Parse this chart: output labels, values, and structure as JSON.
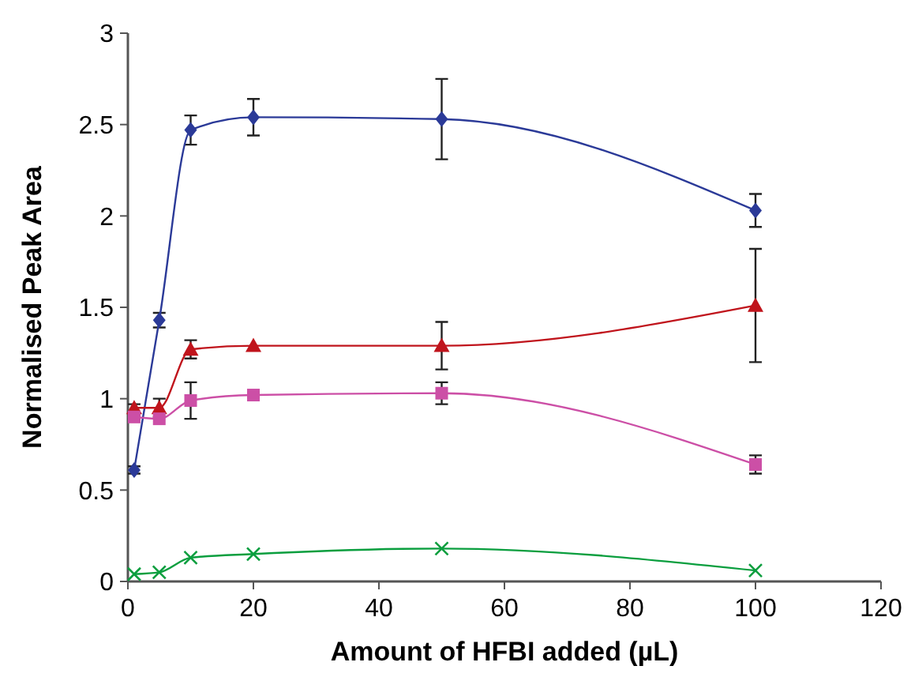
{
  "chart_data": {
    "type": "line",
    "xlabel": "Amount of HFBI added (µL)",
    "ylabel": "Normalised Peak Area",
    "x": [
      1,
      5,
      10,
      20,
      50,
      100
    ],
    "xlim": [
      0,
      120
    ],
    "xticks": [
      0,
      20,
      40,
      60,
      80,
      100,
      120
    ],
    "ylim": [
      0,
      3
    ],
    "yticks": [
      0,
      0.5,
      1,
      1.5,
      2,
      2.5,
      3
    ],
    "grid": false,
    "series": [
      {
        "color": "#2b3a98",
        "marker": "diamond",
        "values": [
          0.61,
          1.43,
          2.47,
          2.54,
          2.53,
          2.03
        ],
        "errors": [
          0.02,
          0.04,
          0.08,
          0.1,
          0.22,
          0.09
        ]
      },
      {
        "color": "#c0141c",
        "marker": "triangle",
        "values": [
          0.95,
          0.95,
          1.27,
          1.29,
          1.29,
          1.51
        ],
        "errors": [
          0.02,
          0.05,
          0.05,
          null,
          0.13,
          0.31
        ]
      },
      {
        "color": "#cc4fa6",
        "marker": "square",
        "values": [
          0.9,
          0.89,
          0.99,
          1.02,
          1.03,
          0.64
        ],
        "errors": [
          0.01,
          null,
          0.1,
          null,
          0.06,
          0.05
        ]
      },
      {
        "color": "#0a9e3e",
        "marker": "cross",
        "values": [
          0.04,
          0.05,
          0.13,
          0.15,
          0.18,
          0.06
        ]
      }
    ]
  }
}
